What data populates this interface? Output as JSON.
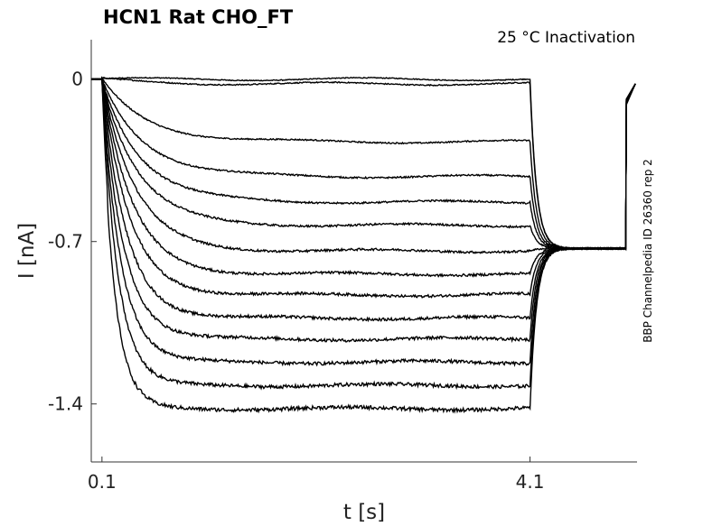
{
  "chart_data": {
    "type": "line",
    "title": "HCN1  Rat  CHO_FT",
    "annotation": "25 °C  Inactivation",
    "side_label": "BBP Channelpedia ID 26360 rep 2",
    "xlabel": "t [s]",
    "ylabel": "I [nA]",
    "x_ticks": [
      "0.1",
      "4.1"
    ],
    "y_ticks": [
      "0",
      "-0.7",
      "-1.4"
    ],
    "xlim": [
      0.0,
      5.1
    ],
    "ylim": [
      -1.65,
      0.17
    ],
    "grid": false,
    "pulse_start_s": 0.1,
    "pulse_end_s": 4.1,
    "tail_end_s": 5.0,
    "tail_level_nA": -0.73,
    "steady_state_nA": [
      0.0,
      -0.02,
      -0.27,
      -0.42,
      -0.53,
      -0.63,
      -0.74,
      -0.84,
      -0.93,
      -1.03,
      -1.12,
      -1.22,
      -1.32,
      -1.42
    ]
  }
}
